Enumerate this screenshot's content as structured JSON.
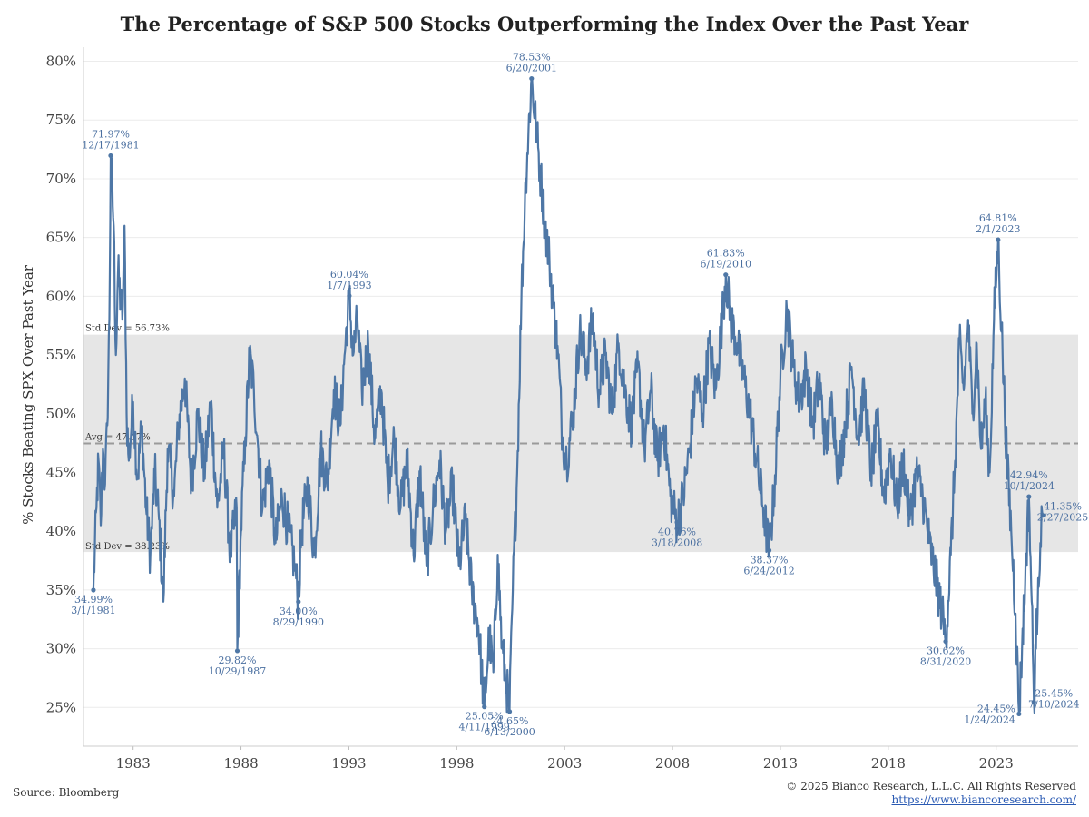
{
  "chart_data": {
    "type": "line",
    "title": "The Percentage of S&P 500 Stocks Outperforming the Index Over the Past Year",
    "ylabel": "% Stocks Beating SPX Over Past Year",
    "xlabel": "",
    "xlim": [
      1980.7,
      2026.8
    ],
    "ylim": [
      21.7,
      81.2
    ],
    "x_ticks": [
      1983,
      1988,
      1993,
      1998,
      2003,
      2008,
      2013,
      2018,
      2023
    ],
    "y_ticks": [
      25,
      30,
      35,
      40,
      45,
      50,
      55,
      60,
      65,
      70,
      75,
      80
    ],
    "y_tick_format": "%",
    "grid": "horizontal",
    "line_color": "#4e77a6",
    "band_color": "#e6e6e6",
    "band": {
      "low": 38.23,
      "high": 56.73,
      "low_label": "Std Dev = 38.23%",
      "high_label": "Std Dev = 56.73%"
    },
    "average": {
      "value": 47.47,
      "label": "Avg = 47.47%"
    },
    "series": [
      {
        "values_x": [
          1981.16,
          1981.3,
          1981.4,
          1981.5,
          1981.6,
          1981.7,
          1981.8,
          1981.9,
          1981.96,
          1982.1,
          1982.2,
          1982.3,
          1982.5,
          1982.6,
          1982.7,
          1982.8,
          1983.0,
          1983.2,
          1983.4,
          1983.6,
          1983.8,
          1984.0,
          1984.2,
          1984.4,
          1984.6,
          1984.9,
          1985.1,
          1985.4,
          1985.7,
          1986.0,
          1986.3,
          1986.6,
          1986.9,
          1987.2,
          1987.5,
          1987.8,
          1987.83,
          1988.0,
          1988.2,
          1988.4,
          1988.6,
          1988.8,
          1989.0,
          1989.3,
          1989.6,
          1989.9,
          1990.2,
          1990.5,
          1990.66,
          1990.8,
          1991.1,
          1991.4,
          1991.7,
          1992.0,
          1992.3,
          1992.6,
          1992.8,
          1993.02,
          1993.2,
          1993.4,
          1993.6,
          1993.9,
          1994.2,
          1994.5,
          1994.8,
          1995.1,
          1995.4,
          1995.7,
          1996.0,
          1996.3,
          1996.6,
          1996.9,
          1997.2,
          1997.5,
          1997.8,
          1998.1,
          1998.4,
          1998.7,
          1999.0,
          1999.28,
          1999.5,
          1999.7,
          1999.9,
          2000.1,
          2000.3,
          2000.45,
          2000.6,
          2000.8,
          2001.0,
          2001.2,
          2001.47,
          2001.7,
          2001.9,
          2002.1,
          2002.3,
          2002.5,
          2002.7,
          2002.9,
          2003.1,
          2003.4,
          2003.7,
          2004.0,
          2004.3,
          2004.6,
          2004.9,
          2005.2,
          2005.5,
          2005.8,
          2006.1,
          2006.4,
          2006.7,
          2007.0,
          2007.3,
          2007.6,
          2007.9,
          2008.21,
          2008.5,
          2008.8,
          2009.1,
          2009.4,
          2009.7,
          2010.0,
          2010.3,
          2010.47,
          2010.7,
          2011.0,
          2011.3,
          2011.6,
          2011.9,
          2012.2,
          2012.48,
          2012.7,
          2013.0,
          2013.3,
          2013.6,
          2013.9,
          2014.2,
          2014.5,
          2014.8,
          2015.1,
          2015.4,
          2015.7,
          2016.0,
          2016.3,
          2016.6,
          2016.9,
          2017.2,
          2017.5,
          2017.8,
          2018.1,
          2018.4,
          2018.7,
          2019.0,
          2019.3,
          2019.6,
          2019.9,
          2020.2,
          2020.5,
          2020.66,
          2020.9,
          2021.1,
          2021.3,
          2021.5,
          2021.7,
          2021.9,
          2022.1,
          2022.3,
          2022.5,
          2022.7,
          2022.9,
          2023.09,
          2023.3,
          2023.5,
          2023.7,
          2023.9,
          2024.06,
          2024.2,
          2024.35,
          2024.52,
          2024.65,
          2024.75,
          2024.85,
          2024.95,
          2025.05,
          2025.16
        ],
        "values_y": [
          34.99,
          42.0,
          46.0,
          40.5,
          47.0,
          44.0,
          49.0,
          58.0,
          71.97,
          66.0,
          55.0,
          62.0,
          58.0,
          66.0,
          50.0,
          46.0,
          51.0,
          44.5,
          49.0,
          42.0,
          38.0,
          45.0,
          41.0,
          34.0,
          47.0,
          43.0,
          49.0,
          53.0,
          44.0,
          50.0,
          45.0,
          51.0,
          42.0,
          47.0,
          38.0,
          42.0,
          29.82,
          40.0,
          48.0,
          55.0,
          52.0,
          47.0,
          42.0,
          46.0,
          39.0,
          43.0,
          40.0,
          37.0,
          34.0,
          40.0,
          44.0,
          38.0,
          47.0,
          44.0,
          52.0,
          49.0,
          55.0,
          60.04,
          55.0,
          58.0,
          52.0,
          56.0,
          48.0,
          52.0,
          44.0,
          48.0,
          42.0,
          46.0,
          38.0,
          45.0,
          37.0,
          42.0,
          46.0,
          40.0,
          44.0,
          37.0,
          41.0,
          35.0,
          32.0,
          25.05,
          31.0,
          28.0,
          38.0,
          30.0,
          27.0,
          24.65,
          35.0,
          45.0,
          60.0,
          70.0,
          78.53,
          74.0,
          70.0,
          66.0,
          63.0,
          59.0,
          55.0,
          48.0,
          46.0,
          50.0,
          57.0,
          54.0,
          58.0,
          52.0,
          55.0,
          50.0,
          56.0,
          52.0,
          49.0,
          54.0,
          47.0,
          52.0,
          46.0,
          49.0,
          43.0,
          40.76,
          43.0,
          47.0,
          53.0,
          50.0,
          56.0,
          52.0,
          58.0,
          61.83,
          58.0,
          56.0,
          53.0,
          50.0,
          46.0,
          42.0,
          38.37,
          43.0,
          53.0,
          59.0,
          54.0,
          51.0,
          54.0,
          49.0,
          53.0,
          47.0,
          51.0,
          45.0,
          49.0,
          54.0,
          48.0,
          52.0,
          45.0,
          49.0,
          43.0,
          47.0,
          42.0,
          46.0,
          41.0,
          45.0,
          43.0,
          39.0,
          36.0,
          33.0,
          30.62,
          38.0,
          46.0,
          56.0,
          52.0,
          58.0,
          50.0,
          56.0,
          47.0,
          51.0,
          45.0,
          58.0,
          64.81,
          55.0,
          46.0,
          40.0,
          33.0,
          24.45,
          30.0,
          36.0,
          42.94,
          34.0,
          25.45,
          30.0,
          36.0,
          39.0,
          41.35
        ]
      }
    ],
    "annotations": [
      {
        "value": "34.99%",
        "date": "3/1/1981",
        "x": 1981.16,
        "y": 34.99,
        "pos": "below"
      },
      {
        "value": "71.97%",
        "date": "12/17/1981",
        "x": 1981.96,
        "y": 71.97,
        "pos": "above"
      },
      {
        "value": "29.82%",
        "date": "10/29/1987",
        "x": 1987.83,
        "y": 29.82,
        "pos": "below"
      },
      {
        "value": "34.00%",
        "date": "8/29/1990",
        "x": 1990.66,
        "y": 34.0,
        "pos": "below"
      },
      {
        "value": "60.04%",
        "date": "1/7/1993",
        "x": 1993.02,
        "y": 60.04,
        "pos": "above"
      },
      {
        "value": "25.05%",
        "date": "4/11/1999",
        "x": 1999.28,
        "y": 25.05,
        "pos": "below"
      },
      {
        "value": "24.65%",
        "date": "6/13/2000",
        "x": 2000.45,
        "y": 24.65,
        "pos": "below"
      },
      {
        "value": "78.53%",
        "date": "6/20/2001",
        "x": 2001.47,
        "y": 78.53,
        "pos": "above"
      },
      {
        "value": "40.76%",
        "date": "3/18/2008",
        "x": 2008.21,
        "y": 40.76,
        "pos": "below"
      },
      {
        "value": "61.83%",
        "date": "6/19/2010",
        "x": 2010.47,
        "y": 61.83,
        "pos": "above"
      },
      {
        "value": "38.37%",
        "date": "6/24/2012",
        "x": 2012.48,
        "y": 38.37,
        "pos": "below"
      },
      {
        "value": "30.62%",
        "date": "8/31/2020",
        "x": 2020.66,
        "y": 30.62,
        "pos": "below"
      },
      {
        "value": "64.81%",
        "date": "2/1/2023",
        "x": 2023.09,
        "y": 64.81,
        "pos": "above"
      },
      {
        "value": "24.45%",
        "date": "1/24/2024",
        "x": 2024.06,
        "y": 24.45,
        "pos": "left"
      },
      {
        "value": "42.94%",
        "date": "10/1/2024",
        "x": 2024.52,
        "y": 42.94,
        "pos": "above"
      },
      {
        "value": "25.45%",
        "date": "7/10/2024",
        "x": 2024.75,
        "y": 25.45,
        "pos": "right"
      },
      {
        "value": "41.35%",
        "date": "2/27/2025",
        "x": 2025.16,
        "y": 41.35,
        "pos": "right"
      }
    ]
  },
  "source": "Source: Bloomberg",
  "copyright": "© 2025 Bianco Research, L.L.C. All Rights Reserved",
  "url": "https://www.biancoresearch.com/"
}
